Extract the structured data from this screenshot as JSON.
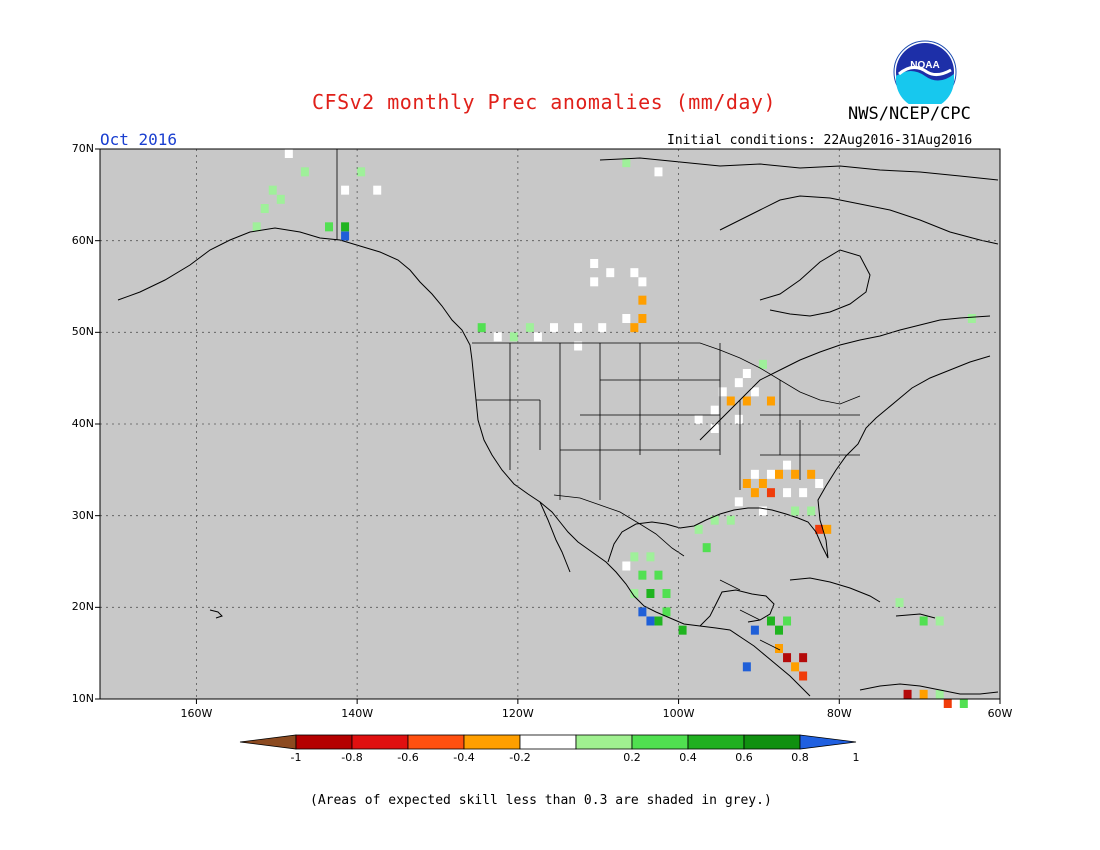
{
  "header": {
    "title": "CFSv2 monthly Prec anomalies (mm/day)",
    "agency": "NWS/NCEP/CPC",
    "month": "Oct 2016",
    "initial_conditions": "Initial conditions: 22Aug2016-31Aug2016",
    "logo_text": "NOAA"
  },
  "map": {
    "lon_range": [
      -172,
      -60
    ],
    "lat_range": [
      10,
      70
    ],
    "lat_ticks": [
      "70N",
      "60N",
      "50N",
      "40N",
      "30N",
      "20N",
      "10N"
    ],
    "lon_ticks": [
      "160W",
      "140W",
      "120W",
      "100W",
      "80W",
      "60W"
    ],
    "background_color": "#c8c8c8",
    "grid": true,
    "anomaly_cells": [
      {
        "lon": -151,
        "lat": 66,
        "cls": "g1"
      },
      {
        "lon": -150,
        "lat": 65,
        "cls": "g1"
      },
      {
        "lon": -152,
        "lat": 64,
        "cls": "g1"
      },
      {
        "lon": -153,
        "lat": 62,
        "cls": "g1"
      },
      {
        "lon": -147,
        "lat": 68,
        "cls": "g1"
      },
      {
        "lon": -140,
        "lat": 68,
        "cls": "g1"
      },
      {
        "lon": -142,
        "lat": 66,
        "cls": "w"
      },
      {
        "lon": -138,
        "lat": 66,
        "cls": "w"
      },
      {
        "lon": -144,
        "lat": 62,
        "cls": "g2"
      },
      {
        "lon": -142,
        "lat": 62,
        "cls": "g3"
      },
      {
        "lon": -142,
        "lat": 61,
        "cls": "b"
      },
      {
        "lon": -111,
        "lat": 58,
        "cls": "w"
      },
      {
        "lon": -109,
        "lat": 57,
        "cls": "w"
      },
      {
        "lon": -111,
        "lat": 56,
        "cls": "w"
      },
      {
        "lon": -106,
        "lat": 57,
        "cls": "w"
      },
      {
        "lon": -105,
        "lat": 56,
        "cls": "w"
      },
      {
        "lon": -105,
        "lat": 54,
        "cls": "o"
      },
      {
        "lon": -107,
        "lat": 52,
        "cls": "w"
      },
      {
        "lon": -110,
        "lat": 51,
        "cls": "w"
      },
      {
        "lon": -113,
        "lat": 51,
        "cls": "w"
      },
      {
        "lon": -116,
        "lat": 51,
        "cls": "w"
      },
      {
        "lon": -118,
        "lat": 50,
        "cls": "w"
      },
      {
        "lon": -106,
        "lat": 51,
        "cls": "o"
      },
      {
        "lon": -105,
        "lat": 52,
        "cls": "o"
      },
      {
        "lon": -113,
        "lat": 49,
        "cls": "w"
      },
      {
        "lon": -125,
        "lat": 51,
        "cls": "g2"
      },
      {
        "lon": -123,
        "lat": 50,
        "cls": "w"
      },
      {
        "lon": -121,
        "lat": 50,
        "cls": "g1"
      },
      {
        "lon": -119,
        "lat": 51,
        "cls": "g1"
      },
      {
        "lon": -92,
        "lat": 46,
        "cls": "w"
      },
      {
        "lon": -93,
        "lat": 45,
        "cls": "w"
      },
      {
        "lon": -91,
        "lat": 44,
        "cls": "w"
      },
      {
        "lon": -95,
        "lat": 44,
        "cls": "w"
      },
      {
        "lon": -92,
        "lat": 43,
        "cls": "o"
      },
      {
        "lon": -94,
        "lat": 43,
        "cls": "o"
      },
      {
        "lon": -96,
        "lat": 42,
        "cls": "w"
      },
      {
        "lon": -98,
        "lat": 41,
        "cls": "w"
      },
      {
        "lon": -96,
        "lat": 40,
        "cls": "w"
      },
      {
        "lon": -93,
        "lat": 41,
        "cls": "w"
      },
      {
        "lon": -89,
        "lat": 43,
        "cls": "o"
      },
      {
        "lon": -90,
        "lat": 47,
        "cls": "g1"
      },
      {
        "lon": -87,
        "lat": 36,
        "cls": "w"
      },
      {
        "lon": -89,
        "lat": 35,
        "cls": "w"
      },
      {
        "lon": -91,
        "lat": 35,
        "cls": "w"
      },
      {
        "lon": -92,
        "lat": 34,
        "cls": "o"
      },
      {
        "lon": -90,
        "lat": 34,
        "cls": "o"
      },
      {
        "lon": -88,
        "lat": 35,
        "cls": "o"
      },
      {
        "lon": -86,
        "lat": 35,
        "cls": "o"
      },
      {
        "lon": -84,
        "lat": 35,
        "cls": "o"
      },
      {
        "lon": -89,
        "lat": 33,
        "cls": "r"
      },
      {
        "lon": -91,
        "lat": 33,
        "cls": "o"
      },
      {
        "lon": -87,
        "lat": 33,
        "cls": "w"
      },
      {
        "lon": -85,
        "lat": 33,
        "cls": "w"
      },
      {
        "lon": -83,
        "lat": 34,
        "cls": "w"
      },
      {
        "lon": -93,
        "lat": 32,
        "cls": "w"
      },
      {
        "lon": -90,
        "lat": 31,
        "cls": "w"
      },
      {
        "lon": -86,
        "lat": 31,
        "cls": "g1"
      },
      {
        "lon": -84,
        "lat": 31,
        "cls": "g1"
      },
      {
        "lon": -83,
        "lat": 29,
        "cls": "r"
      },
      {
        "lon": -82,
        "lat": 29,
        "cls": "o"
      },
      {
        "lon": -96,
        "lat": 30,
        "cls": "g1"
      },
      {
        "lon": -98,
        "lat": 29,
        "cls": "g1"
      },
      {
        "lon": -97,
        "lat": 27,
        "cls": "g2"
      },
      {
        "lon": -94,
        "lat": 30,
        "cls": "g1"
      },
      {
        "lon": -106,
        "lat": 26,
        "cls": "g1"
      },
      {
        "lon": -104,
        "lat": 26,
        "cls": "g1"
      },
      {
        "lon": -107,
        "lat": 25,
        "cls": "w"
      },
      {
        "lon": -105,
        "lat": 24,
        "cls": "g2"
      },
      {
        "lon": -103,
        "lat": 24,
        "cls": "g2"
      },
      {
        "lon": -104,
        "lat": 22,
        "cls": "g3"
      },
      {
        "lon": -102,
        "lat": 22,
        "cls": "g2"
      },
      {
        "lon": -106,
        "lat": 22,
        "cls": "g1"
      },
      {
        "lon": -105,
        "lat": 20,
        "cls": "b"
      },
      {
        "lon": -103,
        "lat": 19,
        "cls": "g3"
      },
      {
        "lon": -102,
        "lat": 20,
        "cls": "g2"
      },
      {
        "lon": -100,
        "lat": 18,
        "cls": "g3"
      },
      {
        "lon": -104,
        "lat": 19,
        "cls": "b"
      },
      {
        "lon": -89,
        "lat": 19,
        "cls": "g3"
      },
      {
        "lon": -87,
        "lat": 19,
        "cls": "g2"
      },
      {
        "lon": -88,
        "lat": 18,
        "cls": "g3"
      },
      {
        "lon": -91,
        "lat": 18,
        "cls": "b"
      },
      {
        "lon": -88,
        "lat": 16,
        "cls": "o"
      },
      {
        "lon": -87,
        "lat": 15,
        "cls": "dr"
      },
      {
        "lon": -85,
        "lat": 15,
        "cls": "dr"
      },
      {
        "lon": -86,
        "lat": 14,
        "cls": "o"
      },
      {
        "lon": -85,
        "lat": 13,
        "cls": "r"
      },
      {
        "lon": -92,
        "lat": 14,
        "cls": "b"
      },
      {
        "lon": -70,
        "lat": 19,
        "cls": "g2"
      },
      {
        "lon": -68,
        "lat": 19,
        "cls": "g1"
      },
      {
        "lon": -73,
        "lat": 21,
        "cls": "g1"
      },
      {
        "lon": -72,
        "lat": 11,
        "cls": "dr"
      },
      {
        "lon": -70,
        "lat": 11,
        "cls": "o"
      },
      {
        "lon": -68,
        "lat": 11,
        "cls": "g1"
      },
      {
        "lon": -65,
        "lat": 10,
        "cls": "g2"
      },
      {
        "lon": -67,
        "lat": 10,
        "cls": "r"
      },
      {
        "lon": -64,
        "lat": 52,
        "cls": "g1"
      },
      {
        "lon": -107,
        "lat": 69,
        "cls": "g1"
      },
      {
        "lon": -103,
        "lat": 68,
        "cls": "w"
      },
      {
        "lon": -149,
        "lat": 70,
        "cls": "w"
      }
    ]
  },
  "colorbar": {
    "labels": [
      "-1",
      "-0.8",
      "-0.6",
      "-0.4",
      "-0.2",
      "0.2",
      "0.4",
      "0.6",
      "0.8",
      "1"
    ],
    "colors": [
      "#8c4a20",
      "#b40000",
      "#e01010",
      "#ff5010",
      "#ff9f00",
      "#ffffff",
      "#a0f090",
      "#50e050",
      "#20b020",
      "#109010",
      "#2060e0"
    ]
  },
  "note": "(Areas of expected skill less than 0.3 are shaded in grey.)"
}
